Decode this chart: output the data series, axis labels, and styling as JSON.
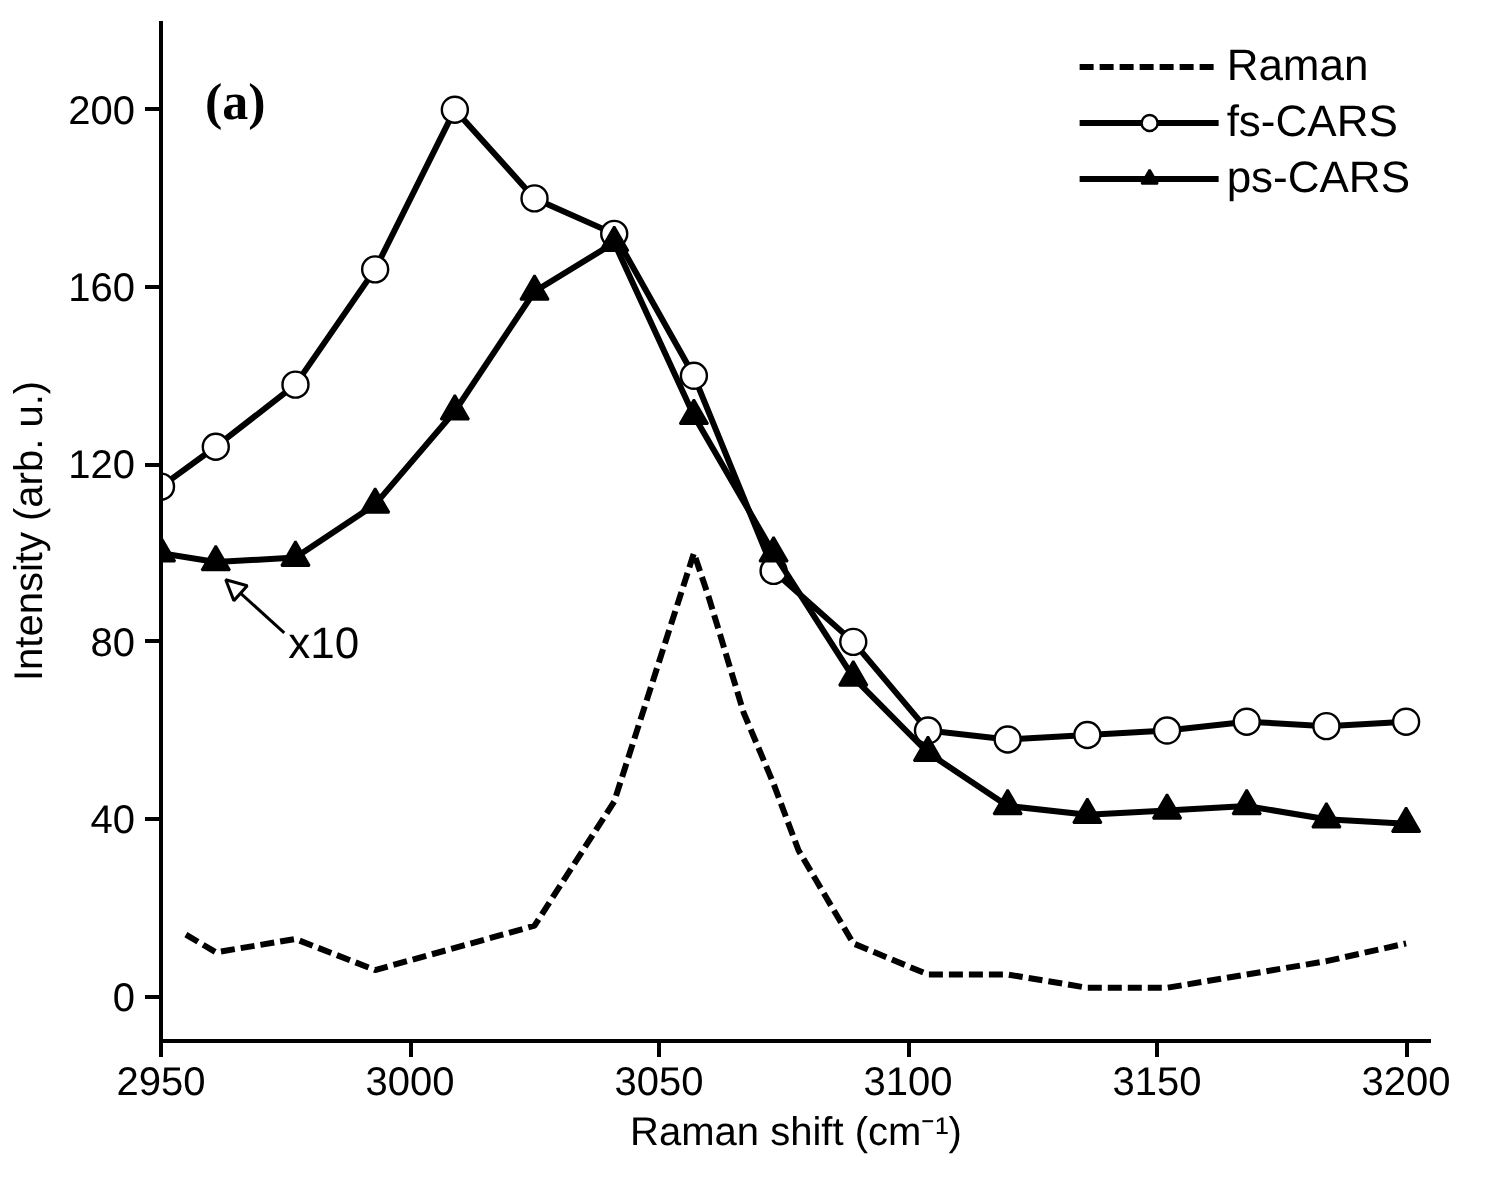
{
  "chart_data": {
    "type": "line",
    "xlabel": "Raman shift (cm⁻¹)",
    "ylabel": "Intensity (arb. u.)",
    "xlim": [
      2950,
      3205
    ],
    "ylim": [
      -10,
      220
    ],
    "xticks": [
      2950,
      3000,
      3050,
      3100,
      3150,
      3200
    ],
    "yticks": [
      0,
      40,
      80,
      120,
      160,
      200
    ],
    "grid": false,
    "legend": "top right",
    "annotations": [
      "(a)",
      {
        "text": "x10",
        "x": 2962,
        "y": 97
      }
    ],
    "series": [
      {
        "name": "Raman",
        "color": "#000000",
        "line_style": "dashed",
        "marker": "none",
        "x": [
          2955,
          2961,
          2977,
          2993,
          3009,
          3025,
          3041,
          3057,
          3060,
          3067,
          3073,
          3078,
          3089,
          3104,
          3120,
          3136,
          3152,
          3168,
          3184,
          3200
        ],
        "values": [
          14,
          10,
          13,
          6,
          11,
          16,
          44,
          100,
          90,
          64,
          48,
          33,
          12,
          5,
          5,
          2,
          2,
          5,
          8,
          12
        ]
      },
      {
        "name": "fs-CARS",
        "color": "#000000",
        "line_style": "solid",
        "marker": "circle",
        "x": [
          2950,
          2961,
          2977,
          2993,
          3009,
          3025,
          3041,
          3057,
          3073,
          3089,
          3104,
          3120,
          3136,
          3152,
          3168,
          3184,
          3200
        ],
        "values": [
          115,
          124,
          138,
          164,
          200,
          180,
          172,
          140,
          96,
          80,
          60,
          58,
          59,
          60,
          62,
          61,
          62
        ]
      },
      {
        "name": "ps-CARS",
        "color": "#000000",
        "line_style": "solid",
        "marker": "triangle",
        "x": [
          2950,
          2961,
          2977,
          2993,
          3009,
          3025,
          3041,
          3057,
          3073,
          3089,
          3104,
          3120,
          3136,
          3152,
          3168,
          3184,
          3200
        ],
        "values": [
          100,
          98,
          99,
          111,
          132,
          159,
          170,
          131,
          100,
          72,
          55,
          43,
          41,
          42,
          43,
          40,
          39
        ]
      }
    ]
  }
}
